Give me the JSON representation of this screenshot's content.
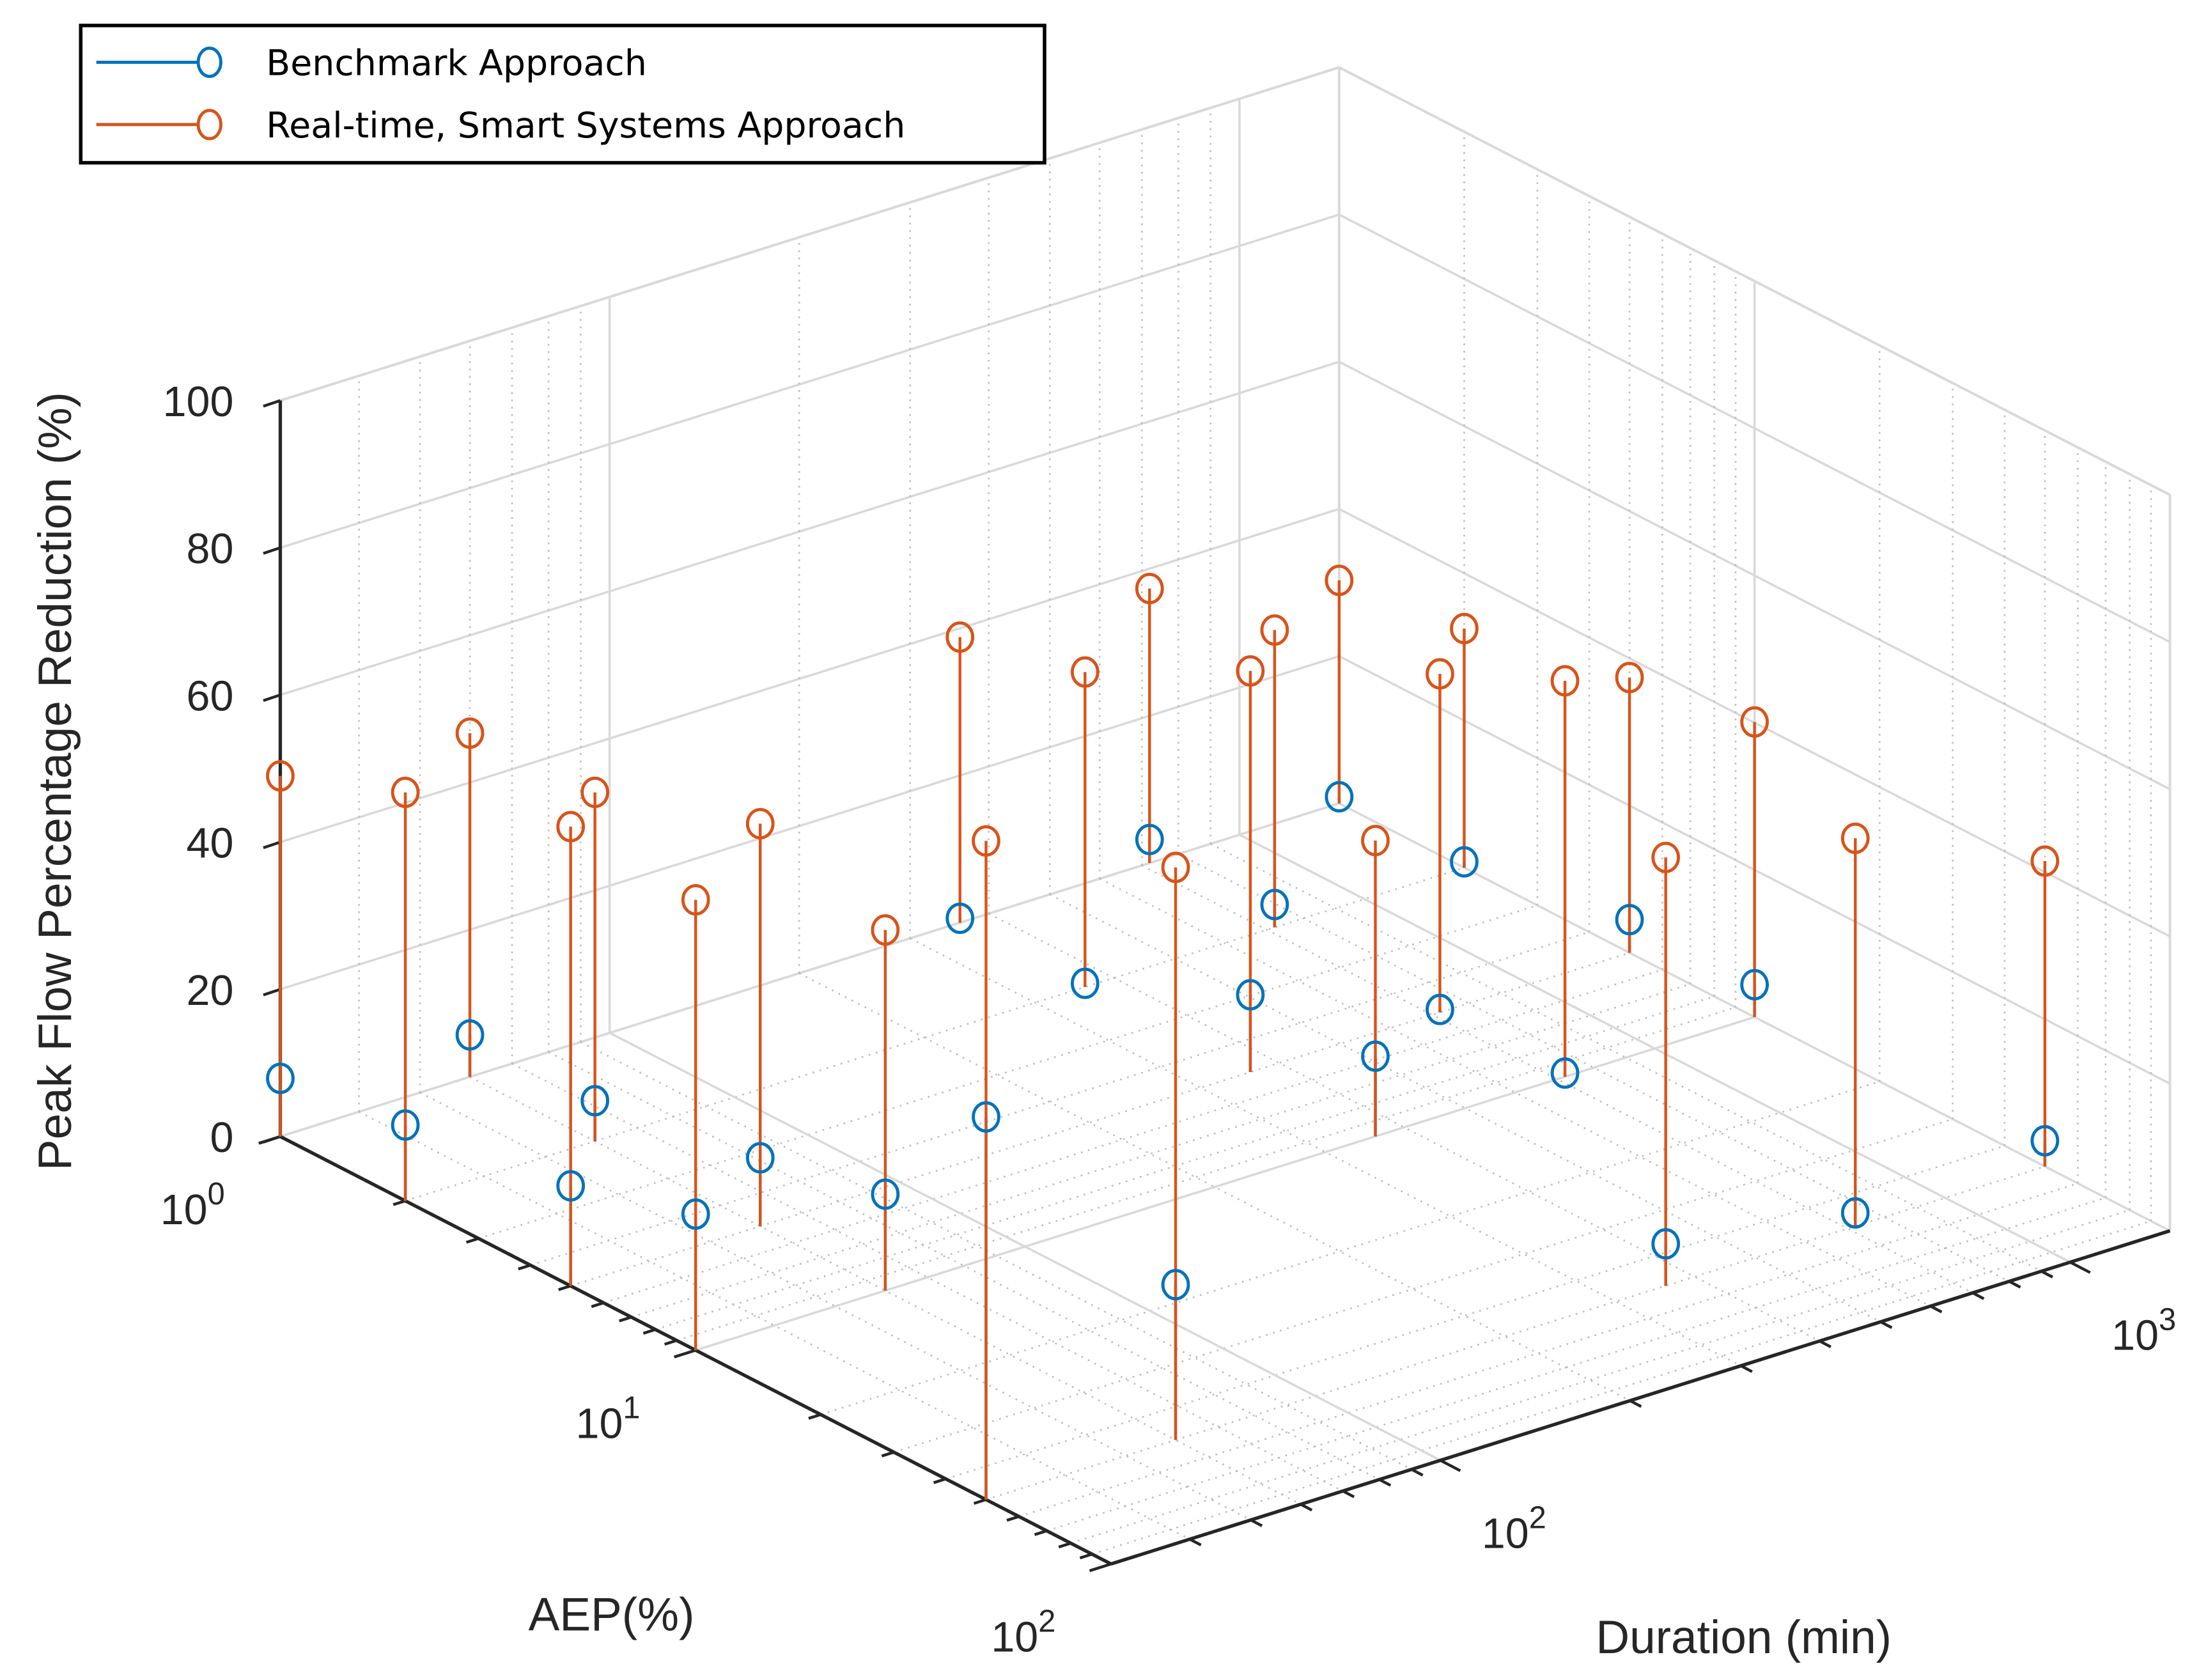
{
  "chart_data": {
    "type": "scatter",
    "subtype": "stem3",
    "title": "",
    "xlabel": "AEP(%)",
    "ylabel": "Duration (min)",
    "zlabel": "Peak Flow Percentage Reduction (%)",
    "x_scale": "log",
    "y_scale": "log",
    "xlim": [
      1,
      100
    ],
    "ylim": [
      30,
      1440
    ],
    "zlim": [
      0,
      100
    ],
    "z_ticks": [
      "0",
      "20",
      "40",
      "60",
      "80",
      "100"
    ],
    "x_ticks": [
      {
        "base": "10",
        "exp": "0",
        "value": 1
      },
      {
        "base": "10",
        "exp": "1",
        "value": 10
      },
      {
        "base": "10",
        "exp": "2",
        "value": 100
      }
    ],
    "y_ticks": [
      {
        "base": "10",
        "exp": "2",
        "value": 100
      },
      {
        "base": "10",
        "exp": "3",
        "value": 1000
      }
    ],
    "grid": true,
    "legend_position": "top-left",
    "series": [
      {
        "name": "Benchmark Approach",
        "color": "#0072BD"
      },
      {
        "name": "Real-time, Smart Systems Approach",
        "color": "#D95319"
      }
    ],
    "points": [
      {
        "aep": 1,
        "duration": 30,
        "benchmark": 7.9,
        "realtime": 49.0
      },
      {
        "aep": 2,
        "duration": 30,
        "benchmark": 10.3,
        "realtime": 55.5
      },
      {
        "aep": 1,
        "duration": 60,
        "benchmark": 5.7,
        "realtime": 46.7
      },
      {
        "aep": 5,
        "duration": 30,
        "benchmark": 13.6,
        "realtime": 62.4
      },
      {
        "aep": 2,
        "duration": 60,
        "benchmark": 5.5,
        "realtime": 47.4
      },
      {
        "aep": 10,
        "duration": 30,
        "benchmark": 18.5,
        "realtime": 61.2
      },
      {
        "aep": 5,
        "duration": 60,
        "benchmark": 9.3,
        "realtime": 54.7
      },
      {
        "aep": 10,
        "duration": 60,
        "benchmark": 13.1,
        "realtime": 49.0
      },
      {
        "aep": 1,
        "duration": 360,
        "benchmark": 0.6,
        "realtime": 38.8
      },
      {
        "aep": 50,
        "duration": 30,
        "benchmark": 52.0,
        "realtime": 89.5
      },
      {
        "aep": 2,
        "duration": 360,
        "benchmark": 0.5,
        "realtime": 42.8
      },
      {
        "aep": 1,
        "duration": 720,
        "benchmark": 3.2,
        "realtime": 37.3
      },
      {
        "aep": 50,
        "duration": 60,
        "benchmark": 21.1,
        "realtime": 77.8
      },
      {
        "aep": 5,
        "duration": 360,
        "benchmark": 10.5,
        "realtime": 54.5
      },
      {
        "aep": 2,
        "duration": 720,
        "benchmark": 3.1,
        "realtime": 40.4
      },
      {
        "aep": 1,
        "duration": 1440,
        "benchmark": 0.9,
        "realtime": 30.3
      },
      {
        "aep": 10,
        "duration": 360,
        "benchmark": 10.9,
        "realtime": 40.2
      },
      {
        "aep": 5,
        "duration": 720,
        "benchmark": 0.4,
        "realtime": 46.0
      },
      {
        "aep": 2,
        "duration": 1440,
        "benchmark": 0.8,
        "realtime": 32.5
      },
      {
        "aep": 10,
        "duration": 720,
        "benchmark": 0.5,
        "realtime": 53.8
      },
      {
        "aep": 5,
        "duration": 1440,
        "benchmark": 4.5,
        "realtime": 37.4
      },
      {
        "aep": 50,
        "duration": 360,
        "benchmark": 5.7,
        "realtime": 58.2
      },
      {
        "aep": 10,
        "duration": 1440,
        "benchmark": 4.4,
        "realtime": 40.1
      },
      {
        "aep": 50,
        "duration": 720,
        "benchmark": 1.8,
        "realtime": 52.7
      },
      {
        "aep": 50,
        "duration": 1440,
        "benchmark": 3.5,
        "realtime": 41.5
      }
    ]
  }
}
